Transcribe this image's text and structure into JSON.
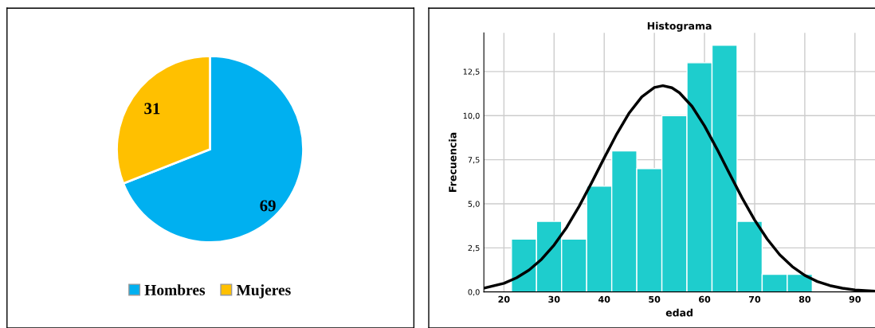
{
  "chart_data": [
    {
      "type": "pie",
      "categories": [
        "Hombres",
        "Mujeres"
      ],
      "values": [
        69,
        31
      ],
      "colors": [
        "#00b0f0",
        "#ffc000"
      ],
      "data_labels": true,
      "legend": "bottom"
    },
    {
      "type": "histogram",
      "title": "Histograma",
      "xlabel": "edad",
      "ylabel": "Frecuencia",
      "series": [
        {
          "type": "histogram",
          "color": "#1ecdcd",
          "bins": [
            21.5,
            26.5,
            31.5,
            36.5,
            41.5,
            46.5,
            51.5,
            56.5,
            61.5,
            66.5,
            71.5,
            76.5,
            81.5
          ],
          "values": [
            3,
            4,
            3,
            6,
            8,
            7,
            10,
            13,
            14,
            4,
            1,
            1
          ]
        },
        {
          "type": "line",
          "color": "#000000",
          "x": [
            16,
            20,
            22.5,
            25,
            27.5,
            30,
            32.5,
            35,
            37.5,
            40,
            42.5,
            45,
            47.5,
            50,
            51.7,
            53.5,
            55,
            57.5,
            60,
            62.5,
            65,
            67.5,
            70,
            72.5,
            75,
            77.5,
            80,
            82.5,
            85,
            87.5,
            90,
            94
          ],
          "values": [
            0.21,
            0.49,
            0.8,
            1.24,
            1.85,
            2.66,
            3.66,
            4.86,
            6.2,
            7.6,
            8.96,
            10.16,
            11.07,
            11.6,
            11.7,
            11.58,
            11.3,
            10.53,
            9.42,
            8.1,
            6.7,
            5.33,
            4.08,
            3.0,
            2.11,
            1.44,
            0.94,
            0.59,
            0.36,
            0.21,
            0.11,
            0.04
          ]
        }
      ],
      "xlim": [
        16,
        94
      ],
      "ylim": [
        0,
        14.7
      ],
      "xticks": [
        20,
        30,
        40,
        50,
        60,
        70,
        80,
        90
      ],
      "yticks": [
        {
          "value": 0,
          "label": "0,0"
        },
        {
          "value": 2.5,
          "label": "2,5"
        },
        {
          "value": 5,
          "label": "5,0"
        },
        {
          "value": 7.5,
          "label": "7,5"
        },
        {
          "value": 10,
          "label": "10,0"
        },
        {
          "value": 12.5,
          "label": "12,5"
        }
      ],
      "grid": true
    }
  ]
}
